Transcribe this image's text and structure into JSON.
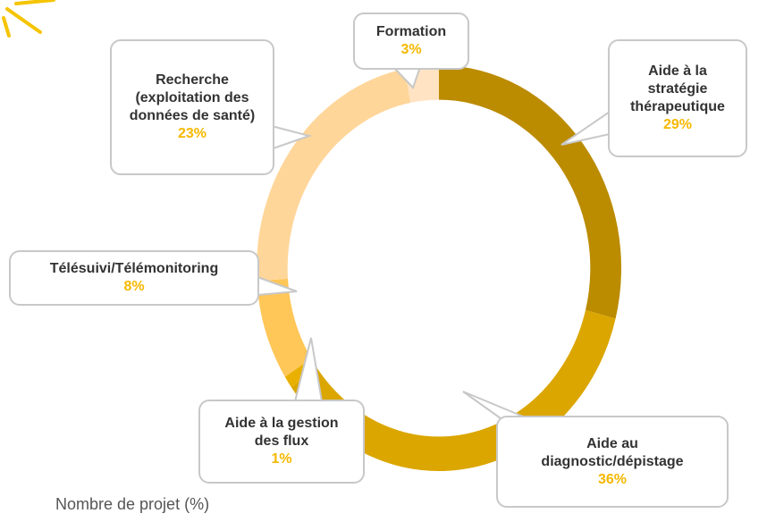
{
  "chart_data": {
    "type": "donut",
    "categories": [
      "Aide à la stratégie thérapeutique",
      "Aide au diagnostic/dépistage",
      "Aide à la gestion des flux",
      "Télésuivi/Télémonitoring",
      "Recherche (exploitation des données de santé)",
      "Formation"
    ],
    "values": [
      29,
      36,
      1,
      8,
      23,
      3
    ],
    "value_labels": [
      "29%",
      "36%",
      "1%",
      "8%",
      "23%",
      "3%"
    ],
    "colors": [
      "#bb8b00",
      "#dba600",
      "#eab000",
      "#ffc658",
      "#ffd699",
      "#ffe3c2"
    ],
    "caption": "Nombre de projet (%)"
  }
}
